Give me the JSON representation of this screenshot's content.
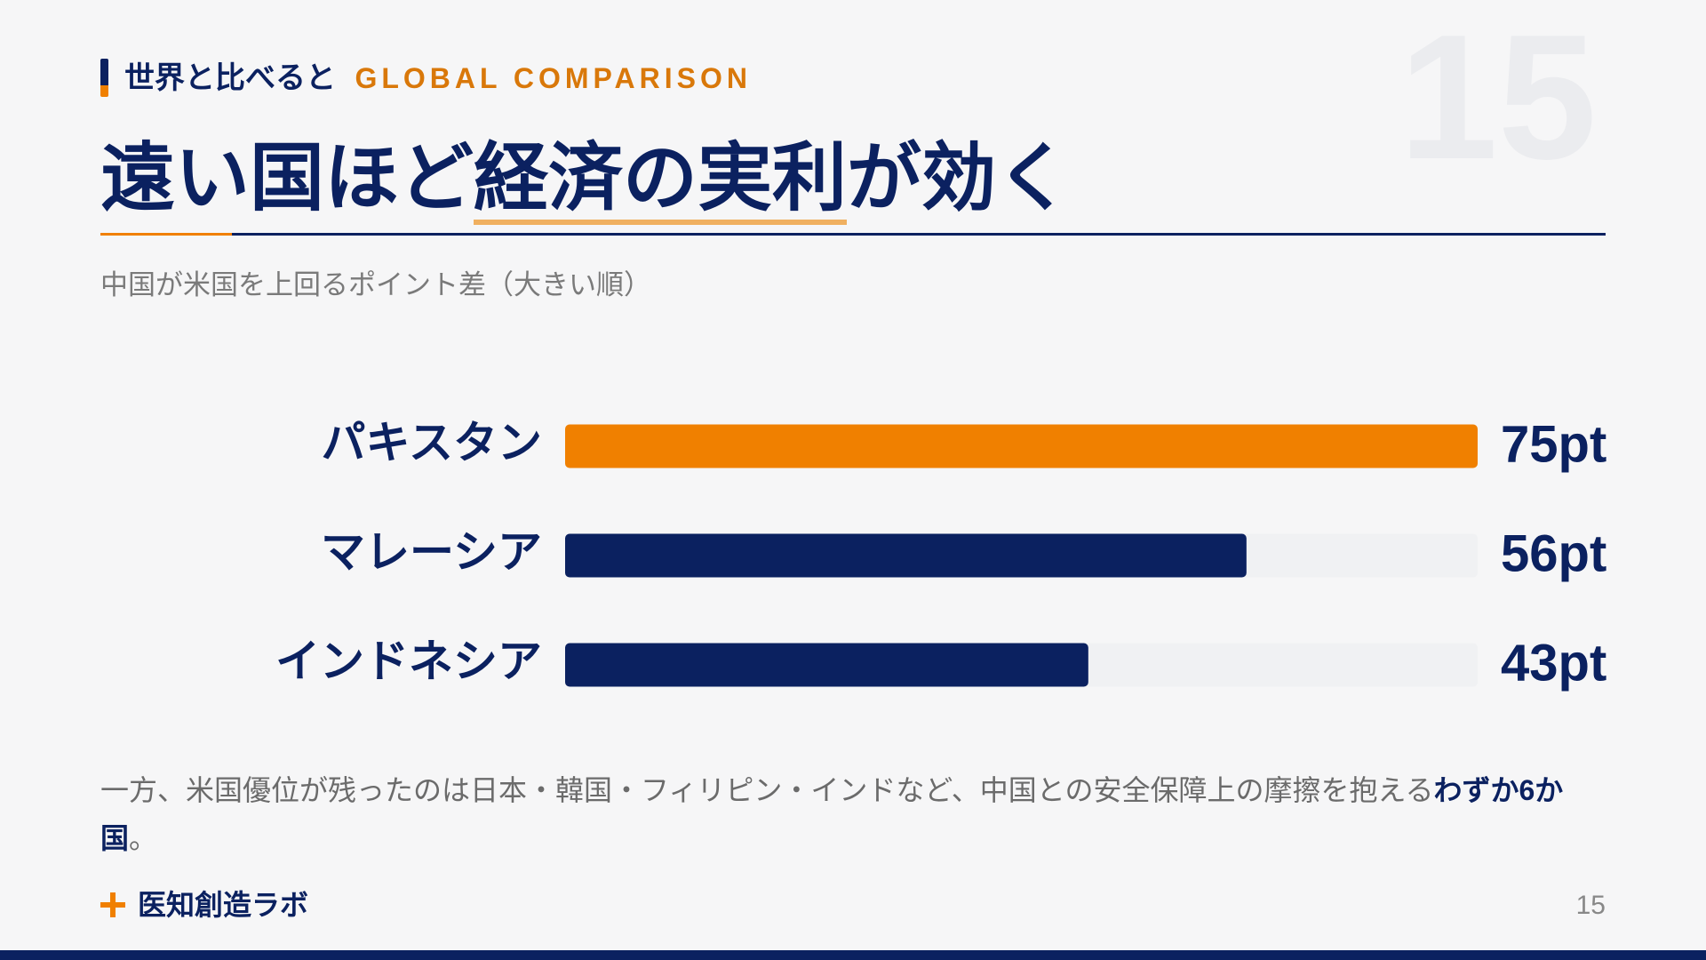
{
  "header": {
    "label": "世界と比べると",
    "label_en": "GLOBAL COMPARISON",
    "page_bg": "15",
    "title_parts": [
      "遠い国ほど",
      "経済の実利",
      "が効く"
    ]
  },
  "chart_data": {
    "type": "bar",
    "orientation": "horizontal",
    "subtitle": "中国が米国を上回るポイント差（大きい順）",
    "categories": [
      "パキスタン",
      "マレーシア",
      "インドネシア"
    ],
    "values": [
      75,
      56,
      43
    ],
    "value_labels": [
      "75pt",
      "56pt",
      "43pt"
    ],
    "colors": [
      "#f08000",
      "#0b2160",
      "#0b2160"
    ],
    "xlim": [
      0,
      75
    ]
  },
  "note": {
    "parts": [
      "一方、米国優位が残ったのは日本・韓国・フィリピン・インドなど、中国との安全保障上の摩擦を抱える",
      "わずか6か国",
      "。"
    ]
  },
  "footer": {
    "brand": "医知創造ラボ",
    "page": "15"
  }
}
